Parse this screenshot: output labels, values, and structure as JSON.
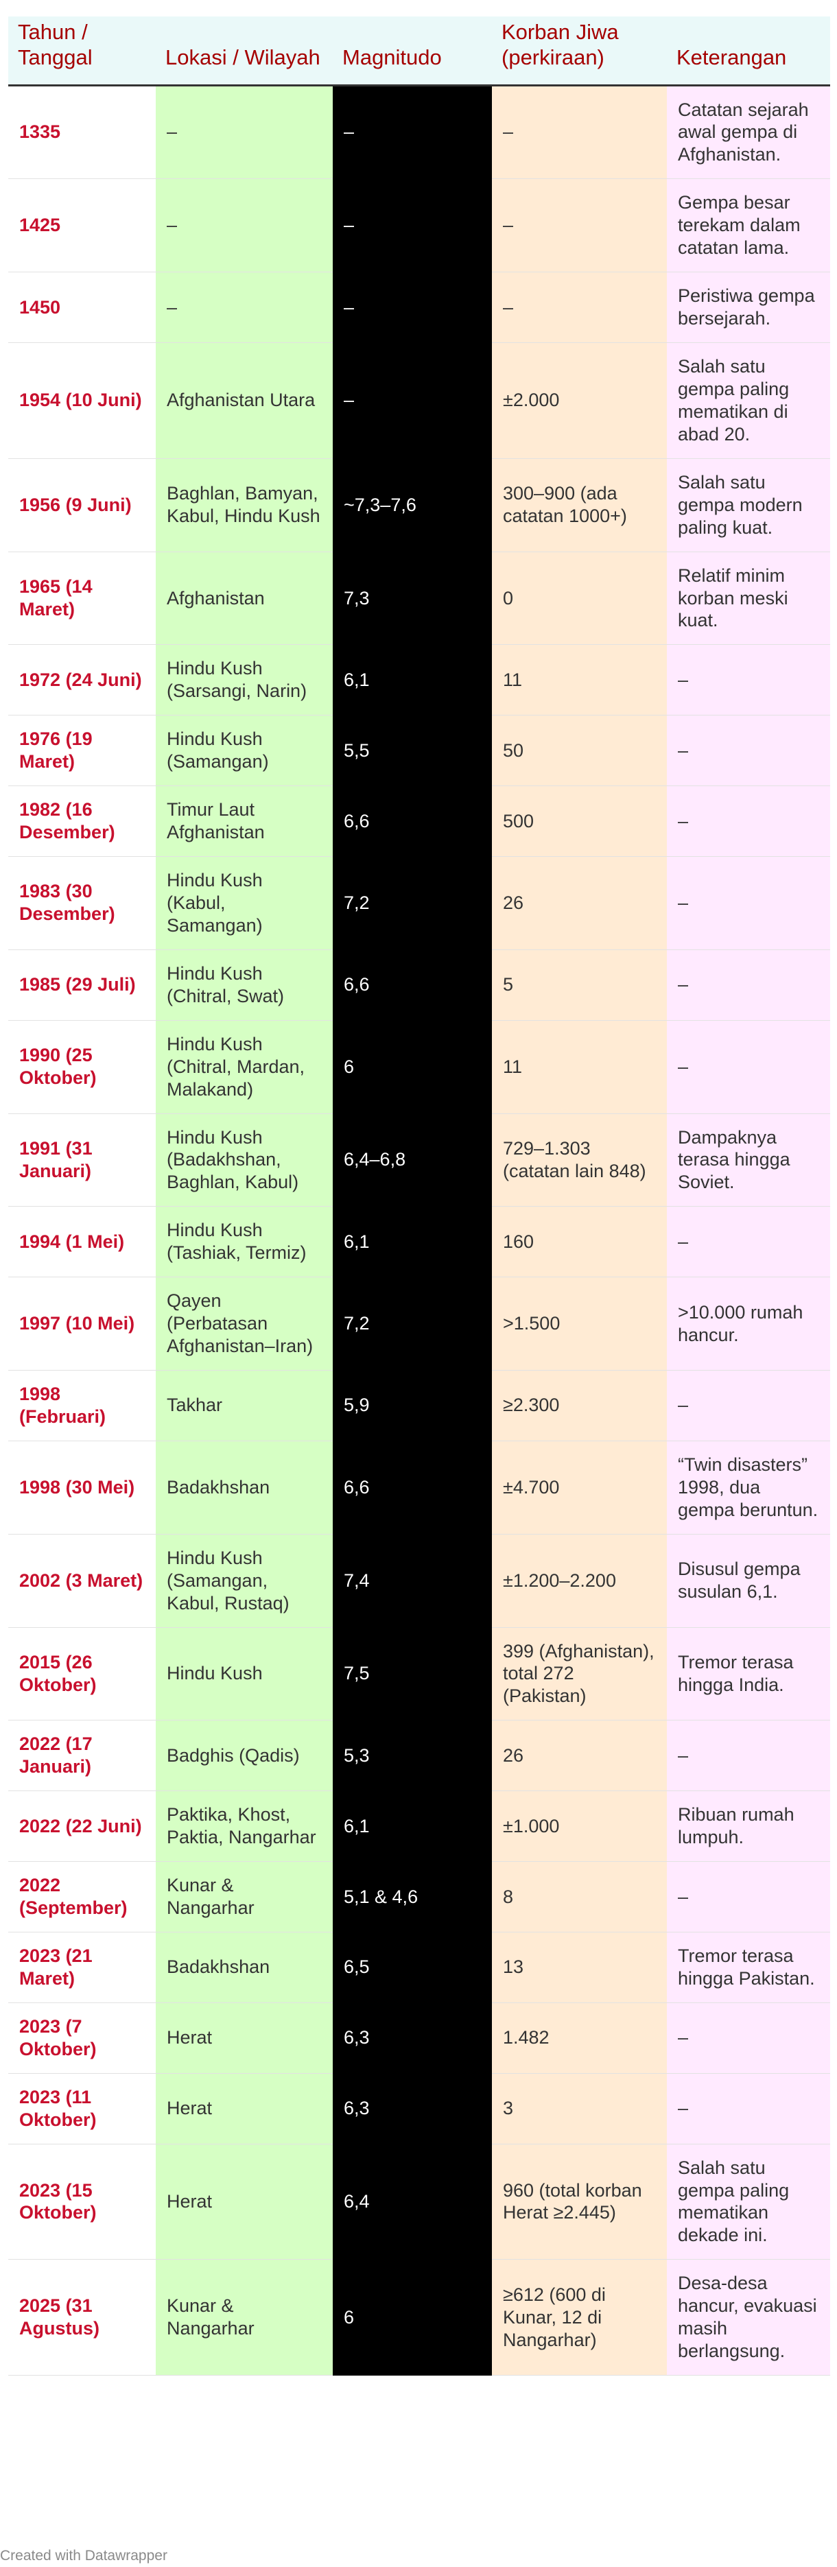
{
  "table": {
    "headers": [
      "Tahun / Tanggal",
      "Lokasi / Wilayah",
      "Magnitudo",
      "Korban Jiwa (perkiraan)",
      "Keterangan"
    ],
    "rows": [
      {
        "year": "1335",
        "location": "–",
        "magnitude": "–",
        "casualties": "–",
        "note": "Catatan sejarah awal gempa di Afghanistan."
      },
      {
        "year": "1425",
        "location": "–",
        "magnitude": "–",
        "casualties": "–",
        "note": "Gempa besar terekam dalam catatan lama."
      },
      {
        "year": "1450",
        "location": "–",
        "magnitude": "–",
        "casualties": "–",
        "note": "Peristiwa gempa bersejarah."
      },
      {
        "year": "1954 (10 Juni)",
        "location": "Afghanistan Utara",
        "magnitude": "–",
        "casualties": "±2.000",
        "note": "Salah satu gempa paling mematikan di abad 20."
      },
      {
        "year": "1956 (9 Juni)",
        "location": "Baghlan, Bamyan, Kabul, Hindu Kush",
        "magnitude": "~7,3–7,6",
        "casualties": "300–900 (ada catatan 1000+)",
        "note": "Salah satu gempa modern paling kuat."
      },
      {
        "year": "1965 (14 Maret)",
        "location": "Afghanistan",
        "magnitude": "7,3",
        "casualties": "0",
        "note": "Relatif minim korban meski kuat."
      },
      {
        "year": "1972 (24 Juni)",
        "location": "Hindu Kush (Sarsangi, Narin)",
        "magnitude": "6,1",
        "casualties": "11",
        "note": "–"
      },
      {
        "year": "1976 (19 Maret)",
        "location": "Hindu Kush (Samangan)",
        "magnitude": "5,5",
        "casualties": "50",
        "note": "–"
      },
      {
        "year": "1982 (16 Desember)",
        "location": "Timur Laut Afghanistan",
        "magnitude": "6,6",
        "casualties": "500",
        "note": "–"
      },
      {
        "year": "1983 (30 Desember)",
        "location": "Hindu Kush (Kabul, Samangan)",
        "magnitude": "7,2",
        "casualties": "26",
        "note": "–"
      },
      {
        "year": "1985 (29 Juli)",
        "location": "Hindu Kush (Chitral, Swat)",
        "magnitude": "6,6",
        "casualties": "5",
        "note": "–"
      },
      {
        "year": "1990 (25 Oktober)",
        "location": "Hindu Kush (Chitral, Mardan, Malakand)",
        "magnitude": "6",
        "casualties": "11",
        "note": "–"
      },
      {
        "year": "1991 (31 Januari)",
        "location": "Hindu Kush (Badakhshan, Baghlan, Kabul)",
        "magnitude": "6,4–6,8",
        "casualties": "729–1.303 (catatan lain 848)",
        "note": "Dampaknya terasa hingga Soviet."
      },
      {
        "year": "1994 (1 Mei)",
        "location": "Hindu Kush (Tashiak, Termiz)",
        "magnitude": "6,1",
        "casualties": "160",
        "note": "–"
      },
      {
        "year": "1997 (10 Mei)",
        "location": "Qayen (Perbatasan Afghanistan–Iran)",
        "magnitude": "7,2",
        "casualties": ">1.500",
        "note": ">10.000 rumah hancur."
      },
      {
        "year": "1998 (Februari)",
        "location": "Takhar",
        "magnitude": "5,9",
        "casualties": "≥2.300",
        "note": "–"
      },
      {
        "year": "1998 (30 Mei)",
        "location": "Badakhshan",
        "magnitude": "6,6",
        "casualties": "±4.700",
        "note": "“Twin disasters” 1998, dua gempa beruntun."
      },
      {
        "year": "2002 (3 Maret)",
        "location": "Hindu Kush (Samangan, Kabul, Rustaq)",
        "magnitude": "7,4",
        "casualties": "±1.200–2.200",
        "note": "Disusul gempa susulan 6,1."
      },
      {
        "year": "2015 (26 Oktober)",
        "location": "Hindu Kush",
        "magnitude": "7,5",
        "casualties": "399 (Afghanistan), total 272 (Pakistan)",
        "note": "Tremor terasa hingga India."
      },
      {
        "year": "2022 (17 Januari)",
        "location": "Badghis (Qadis)",
        "magnitude": "5,3",
        "casualties": "26",
        "note": "–"
      },
      {
        "year": "2022 (22 Juni)",
        "location": "Paktika, Khost, Paktia, Nangarhar",
        "magnitude": "6,1",
        "casualties": "±1.000",
        "note": "Ribuan rumah lumpuh."
      },
      {
        "year": "2022 (September)",
        "location": "Kunar & Nangarhar",
        "magnitude": "5,1 & 4,6",
        "casualties": "8",
        "note": "–"
      },
      {
        "year": "2023 (21 Maret)",
        "location": "Badakhshan",
        "magnitude": "6,5",
        "casualties": "13",
        "note": "Tremor terasa hingga Pakistan."
      },
      {
        "year": "2023 (7 Oktober)",
        "location": "Herat",
        "magnitude": "6,3",
        "casualties": "1.482",
        "note": "–"
      },
      {
        "year": "2023 (11 Oktober)",
        "location": "Herat",
        "magnitude": "6,3",
        "casualties": "3",
        "note": "–"
      },
      {
        "year": "2023 (15 Oktober)",
        "location": "Herat",
        "magnitude": "6,4",
        "casualties": "960 (total korban Herat ≥2.445)",
        "note": "Salah satu gempa paling mematikan dekade ini."
      },
      {
        "year": "2025 (31 Agustus)",
        "location": "Kunar & Nangarhar",
        "magnitude": "6",
        "casualties": "≥612 (600 di Kunar, 12 di Nangarhar)",
        "note": "Desa-desa hancur, evakuasi masih berlangsung."
      }
    ]
  },
  "credit": "Created with Datawrapper",
  "colors": {
    "header_bg": "#eaf9f9",
    "header_text": "#a50000",
    "year_text": "#c8102e",
    "location_bg": "#d6ffc4",
    "magnitude_bg": "#000000",
    "casualties_bg": "#ffebd4",
    "note_bg": "#ffeaff"
  }
}
